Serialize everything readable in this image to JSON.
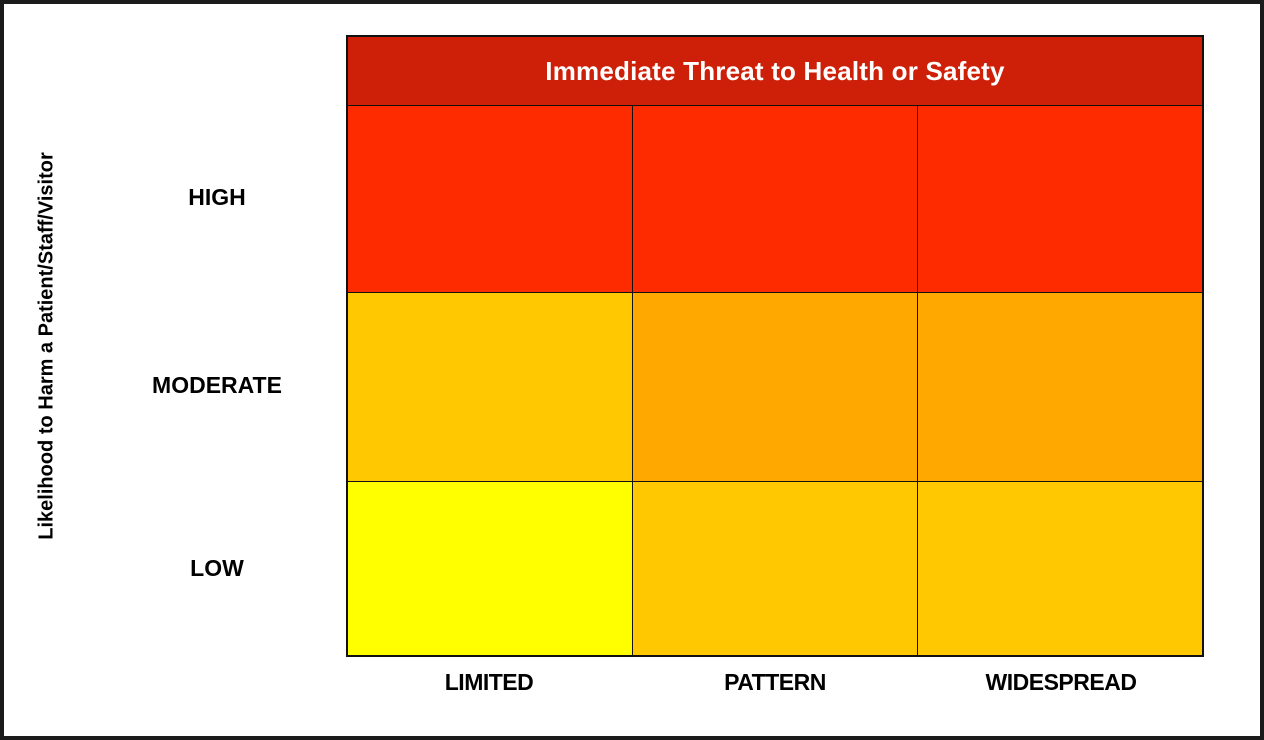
{
  "chart_data": {
    "type": "heatmap",
    "title": "Immediate Threat to Health or Safety",
    "ylabel": "Likelihood to Harm a Patient/Staff/Visitor",
    "xlabel": "",
    "y_categories": [
      "HIGH",
      "MODERATE",
      "LOW"
    ],
    "x_categories": [
      "LIMITED",
      "PATTERN",
      "WIDESPREAD"
    ],
    "cell_colors": [
      [
        "#FF2B00",
        "#FF2B00",
        "#FF2B00"
      ],
      [
        "#FFC800",
        "#FFA800",
        "#FFA800"
      ],
      [
        "#FFFF00",
        "#FFC800",
        "#FFC800"
      ]
    ],
    "colors": {
      "header_background": "#CE2008",
      "header_text": "#FFFFFF",
      "grid_line": "#111111",
      "label_text": "#000000",
      "page_border": "#1B1B1B"
    },
    "legend_position": "none",
    "grid": true,
    "cell_text": ""
  }
}
